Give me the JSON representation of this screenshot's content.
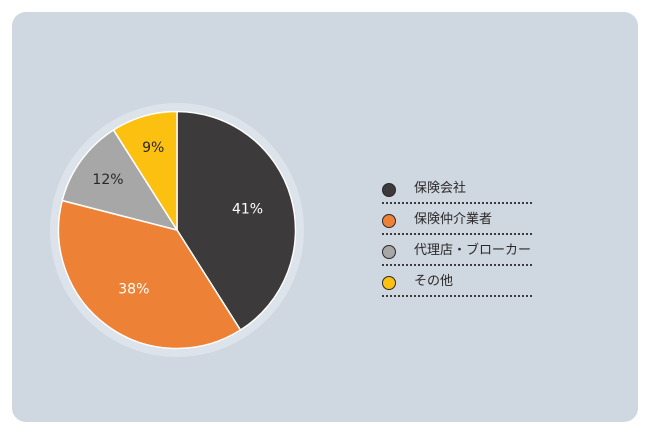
{
  "chart_data": {
    "type": "pie",
    "title": "",
    "slices": [
      {
        "label": "保険会社",
        "value": 41,
        "value_label": "41%",
        "color": "#3d3a3b",
        "label_color": "#ffffff"
      },
      {
        "label": "保険仲介業者",
        "value": 38,
        "value_label": "38%",
        "color": "#ed8236",
        "label_color": "#ffffff"
      },
      {
        "label": "代理店・ブローカー",
        "value": 12,
        "value_label": "12%",
        "color": "#a7a7a7",
        "label_color": "#2b2829"
      },
      {
        "label": "その他",
        "value": 9,
        "value_label": "9%",
        "color": "#fcc010",
        "label_color": "#2b2829"
      }
    ],
    "legend_position": "right",
    "start_angle": "top",
    "direction": "clockwise"
  },
  "colors": {
    "background": "#cfd7e0",
    "ring": "#dde3ea"
  }
}
